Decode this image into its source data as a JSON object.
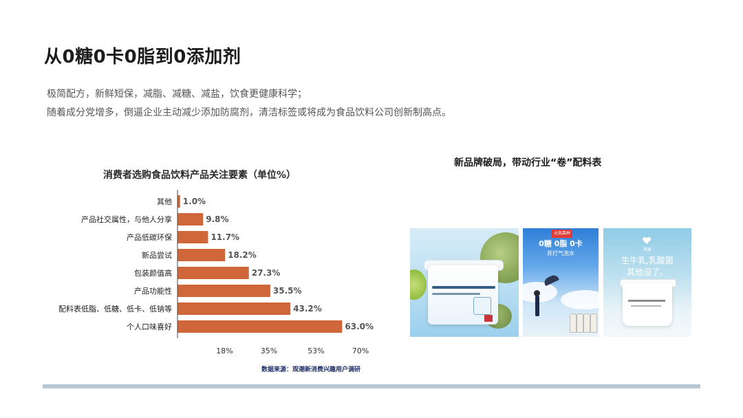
{
  "page": {
    "title": "从0糖0卡0脂到0添加剂",
    "subtitle_lines": [
      "极简配方，新鲜短保，减脂、减糖、减盐，饮食更健康科学；",
      "随着成分党增多，倒逼企业主动减少添加防腐剂，清洁标签或将成为食品饮料公司创新制高点。"
    ]
  },
  "chart_data": {
    "type": "bar",
    "orientation": "horizontal",
    "title": "消费者选购食品饮料产品关注要素（单位%）",
    "categories": [
      "其他",
      "产品社交属性，与他人分享",
      "产品低碳环保",
      "新品尝试",
      "包装颜值高",
      "产品功能性",
      "配料表低脂、低糖、低卡、低钠等",
      "个人口味喜好"
    ],
    "values": [
      1.0,
      9.8,
      11.7,
      18.2,
      27.3,
      35.5,
      43.2,
      63.0
    ],
    "value_labels": [
      "1.0%",
      "9.8%",
      "11.7%",
      "18.2%",
      "27.3%",
      "35.5%",
      "43.2%",
      "63.0%"
    ],
    "xticks": [
      18,
      35,
      53,
      70
    ],
    "xtick_labels": [
      "18%",
      "35%",
      "53%",
      "70%"
    ],
    "xlim": [
      0,
      75
    ],
    "bar_color": "#d0673a",
    "grid": false,
    "source": "数据来源：观潮新消费兴趣用户调研"
  },
  "right_panel": {
    "title": "新品牌破局，带动行业“卷”配料表",
    "images": [
      {
        "name": "yogurt-cup-photo"
      },
      {
        "name": "sparkling-water-ad",
        "tag": "元気森林",
        "headline": "0糖 0脂 0卡",
        "sub": "苏打气泡水"
      },
      {
        "name": "milk-tub-ad",
        "brand": "简爱",
        "line1": "生牛乳,乳酸菌",
        "line2": "其他没了。"
      }
    ]
  }
}
